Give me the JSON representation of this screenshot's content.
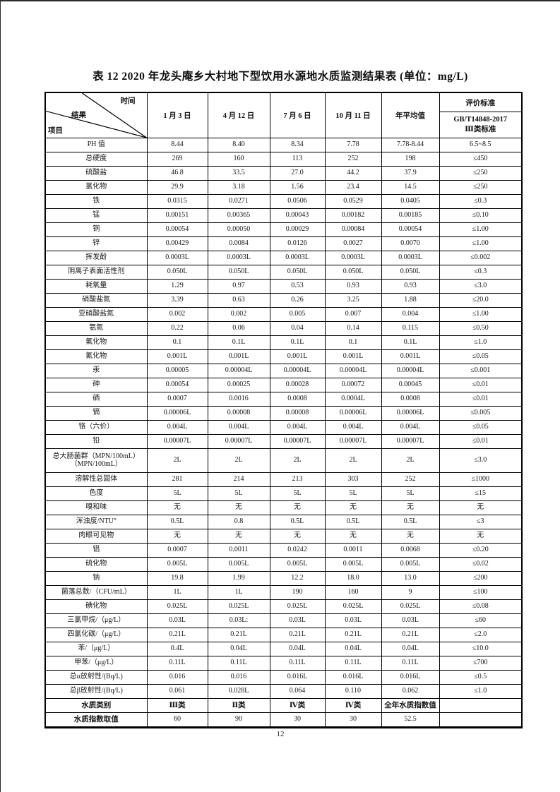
{
  "title": "表 12   2020 年龙头庵乡大村地下型饮用水源地水质监测结果表 (单位：mg/L)",
  "page_number": "12",
  "table": {
    "corner": {
      "time": "时间",
      "result": "结果",
      "item": "项目"
    },
    "columns": [
      "1 月 3 日",
      "4 月 12 日",
      "7 月 6 日",
      "10 月 11 日",
      "年平均值"
    ],
    "standard": {
      "line1": "评价标准",
      "line2": "GB/T14848-2017",
      "line3": "Ⅲ类标准"
    },
    "rows": [
      {
        "label": "PH 值",
        "values": [
          "8.44",
          "8.40",
          "8.34",
          "7.78",
          "7.78-8.44"
        ],
        "standard": "6.5~8.5"
      },
      {
        "label": "总硬度",
        "values": [
          "269",
          "160",
          "113",
          "252",
          "198"
        ],
        "standard": "≤450"
      },
      {
        "label": "硫酸盐",
        "values": [
          "46.8",
          "33.5",
          "27.0",
          "44.2",
          "37.9"
        ],
        "standard": "≤250"
      },
      {
        "label": "氯化物",
        "values": [
          "29.9",
          "3.18",
          "1.56",
          "23.4",
          "14.5"
        ],
        "standard": "≤250"
      },
      {
        "label": "铁",
        "values": [
          "0.0315",
          "0.0271",
          "0.0506",
          "0.0529",
          "0.0405"
        ],
        "standard": "≤0.3"
      },
      {
        "label": "锰",
        "values": [
          "0.00151",
          "0.00365",
          "0.00043",
          "0.00182",
          "0.00185"
        ],
        "standard": "≤0.10"
      },
      {
        "label": "铜",
        "values": [
          "0.00054",
          "0.00050",
          "0.00029",
          "0.00084",
          "0.00054"
        ],
        "standard": "≤1.00"
      },
      {
        "label": "锌",
        "values": [
          "0.00429",
          "0.0084",
          "0.0126",
          "0.0027",
          "0.0070"
        ],
        "standard": "≤1.00"
      },
      {
        "label": "挥发酚",
        "values": [
          "0.0003L",
          "0.0003L",
          "0.0003L",
          "0.0003L",
          "0.0003L"
        ],
        "standard": "≤0.002"
      },
      {
        "label": "阴离子表面活性剂",
        "values": [
          "0.050L",
          "0.050L",
          "0.050L",
          "0.050L",
          "0.050L"
        ],
        "standard": "≤0.3"
      },
      {
        "label": "耗氧量",
        "values": [
          "1.29",
          "0.97",
          "0.53",
          "0.93",
          "0.93"
        ],
        "standard": "≤3.0"
      },
      {
        "label": "硝酸盐氮",
        "values": [
          "3.39",
          "0.63",
          "0.26",
          "3.25",
          "1.88"
        ],
        "standard": "≤20.0"
      },
      {
        "label": "亚硝酸盐氮",
        "values": [
          "0.002",
          "0.002",
          "0.005",
          "0.007",
          "0.004"
        ],
        "standard": "≤1.00"
      },
      {
        "label": "氨氮",
        "values": [
          "0.22",
          "0.06",
          "0.04",
          "0.14",
          "0.115"
        ],
        "standard": "≤0.50"
      },
      {
        "label": "氟化物",
        "values": [
          "0.1",
          "0.1L",
          "0.1L",
          "0.1",
          "0.1L"
        ],
        "standard": "≤1.0"
      },
      {
        "label": "氰化物",
        "values": [
          "0.001L",
          "0.001L",
          "0.001L",
          "0.001L",
          "0.001L"
        ],
        "standard": "≤0.05"
      },
      {
        "label": "汞",
        "values": [
          "0.00005",
          "0.00004L",
          "0.00004L",
          "0.00004L",
          "0.00004L"
        ],
        "standard": "≤0.001"
      },
      {
        "label": "砷",
        "values": [
          "0.00054",
          "0.00025",
          "0.00028",
          "0.00072",
          "0.00045"
        ],
        "standard": "≤0.01"
      },
      {
        "label": "硒",
        "values": [
          "0.0007",
          "0.0016",
          "0.0008",
          "0.0004L",
          "0.0008"
        ],
        "standard": "≤0.01"
      },
      {
        "label": "镉",
        "values": [
          "0.00006L",
          "0.00008",
          "0.00008",
          "0.00006L",
          "0.00006L"
        ],
        "standard": "≤0.005"
      },
      {
        "label": "铬（六价）",
        "values": [
          "0.004L",
          "0.004L",
          "0.004L",
          "0.004L",
          "0.004L"
        ],
        "standard": "≤0.05"
      },
      {
        "label": "铅",
        "values": [
          "0.00007L",
          "0.00007L",
          "0.00007L",
          "0.00007L",
          "0.00007L"
        ],
        "standard": "≤0.01"
      },
      {
        "label": "总大肠菌群（MPN/100mL）\n（MPN/100mL）",
        "values": [
          "2L",
          "2L",
          "2L",
          "2L",
          "2L"
        ],
        "standard": "≤3.0"
      },
      {
        "label": "溶解性总固体",
        "values": [
          "281",
          "214",
          "213",
          "303",
          "252"
        ],
        "standard": "≤1000"
      },
      {
        "label": "色度",
        "values": [
          "5L",
          "5L",
          "5L",
          "5L",
          "5L"
        ],
        "standard": "≤15"
      },
      {
        "label": "嗅和味",
        "values": [
          "无",
          "无",
          "无",
          "无",
          "无"
        ],
        "standard": "无"
      },
      {
        "label": "浑浊度/NTU°",
        "values": [
          "0.5L",
          "0.8",
          "0.5L",
          "0.5L",
          "0.5L"
        ],
        "standard": "≤3"
      },
      {
        "label": "肉眼可见物",
        "values": [
          "无",
          "无",
          "无",
          "无",
          "无"
        ],
        "standard": "无"
      },
      {
        "label": "铝",
        "values": [
          "0.0007",
          "0.0011",
          "0.0242",
          "0.0011",
          "0.0068"
        ],
        "standard": "≤0.20"
      },
      {
        "label": "硫化物",
        "values": [
          "0.005L",
          "0.005L",
          "0.005L",
          "0.005L",
          "0.005L"
        ],
        "standard": "≤0.02"
      },
      {
        "label": "钠",
        "values": [
          "19.8",
          "1.99",
          "12.2",
          "18.0",
          "13.0"
        ],
        "standard": "≤200"
      },
      {
        "label": "菌落总数/（CFU/mL）",
        "values": [
          "1L",
          "1L",
          "190",
          "160",
          "9"
        ],
        "standard": "≤100"
      },
      {
        "label": "碘化物",
        "values": [
          "0.025L",
          "0.025L",
          "0.025L",
          "0.025L",
          "0.025L"
        ],
        "standard": "≤0.08"
      },
      {
        "label": "三氯甲烷/（μg/L）",
        "values": [
          "0.03L",
          "0.03L:",
          "0.03L",
          "0.03L",
          "0.03L"
        ],
        "standard": "≤60"
      },
      {
        "label": "四氯化碳/（μg/L）",
        "values": [
          "0.21L",
          "0.21L",
          "0.21L",
          "0.21L",
          "0.21L"
        ],
        "standard": "≤2.0"
      },
      {
        "label": "苯/（μg/L）",
        "values": [
          "0.4L",
          "0.04L",
          "0.04L",
          "0.04L",
          "0.04L"
        ],
        "standard": "≤10.0"
      },
      {
        "label": "甲苯/（μg/L）",
        "values": [
          "0.11L",
          "0.11L",
          "0.11L",
          "0.11L",
          "0.11L"
        ],
        "standard": "≤700"
      },
      {
        "label": "总α放射性/(Bq/L)",
        "values": [
          "0.016",
          "0.016",
          "0.016L",
          "0.016L",
          "0.016L"
        ],
        "standard": "≤0.5"
      },
      {
        "label": "总β放射性/(Bq/L)",
        "values": [
          "0.061",
          "0.028L",
          "0.064",
          "0.110",
          "0.062"
        ],
        "standard": "≤1.0"
      },
      {
        "label": "水质类别",
        "values": [
          "Ⅲ类",
          "Ⅱ类",
          "Ⅳ类",
          "Ⅳ类",
          "全年水质指数值"
        ],
        "standard": "",
        "bold_label": true,
        "bold_values": true
      },
      {
        "label": "水质指数取值",
        "values": [
          "60",
          "90",
          "30",
          "30",
          "52.5"
        ],
        "standard": "",
        "bold_label": true
      }
    ]
  }
}
